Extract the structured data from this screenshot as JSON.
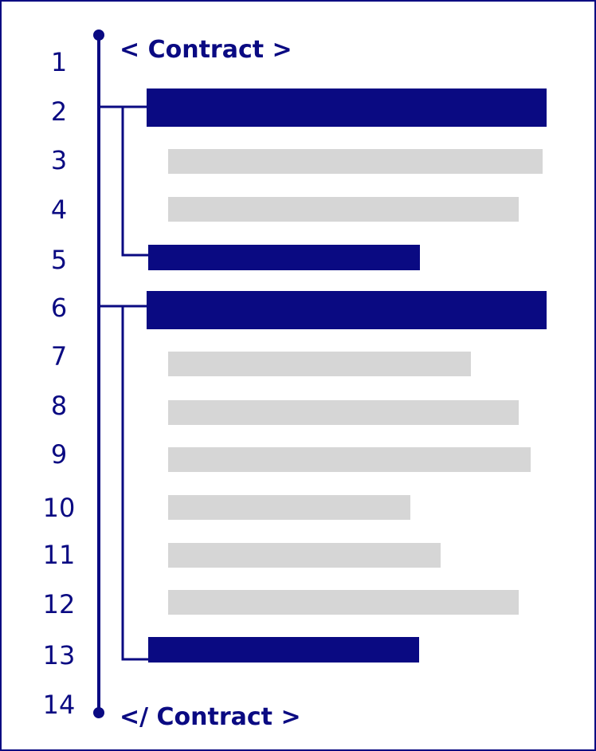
{
  "diagram": {
    "open_tag": "< Contract >",
    "close_tag": "</ Contract >",
    "line_numbers": [
      "1",
      "2",
      "3",
      "4",
      "5",
      "6",
      "7",
      "8",
      "9",
      "10",
      "11",
      "12",
      "13",
      "14"
    ],
    "colors": {
      "accent": "#0a0a82",
      "placeholder": "#d6d6d6",
      "background": "#ffffff"
    }
  }
}
